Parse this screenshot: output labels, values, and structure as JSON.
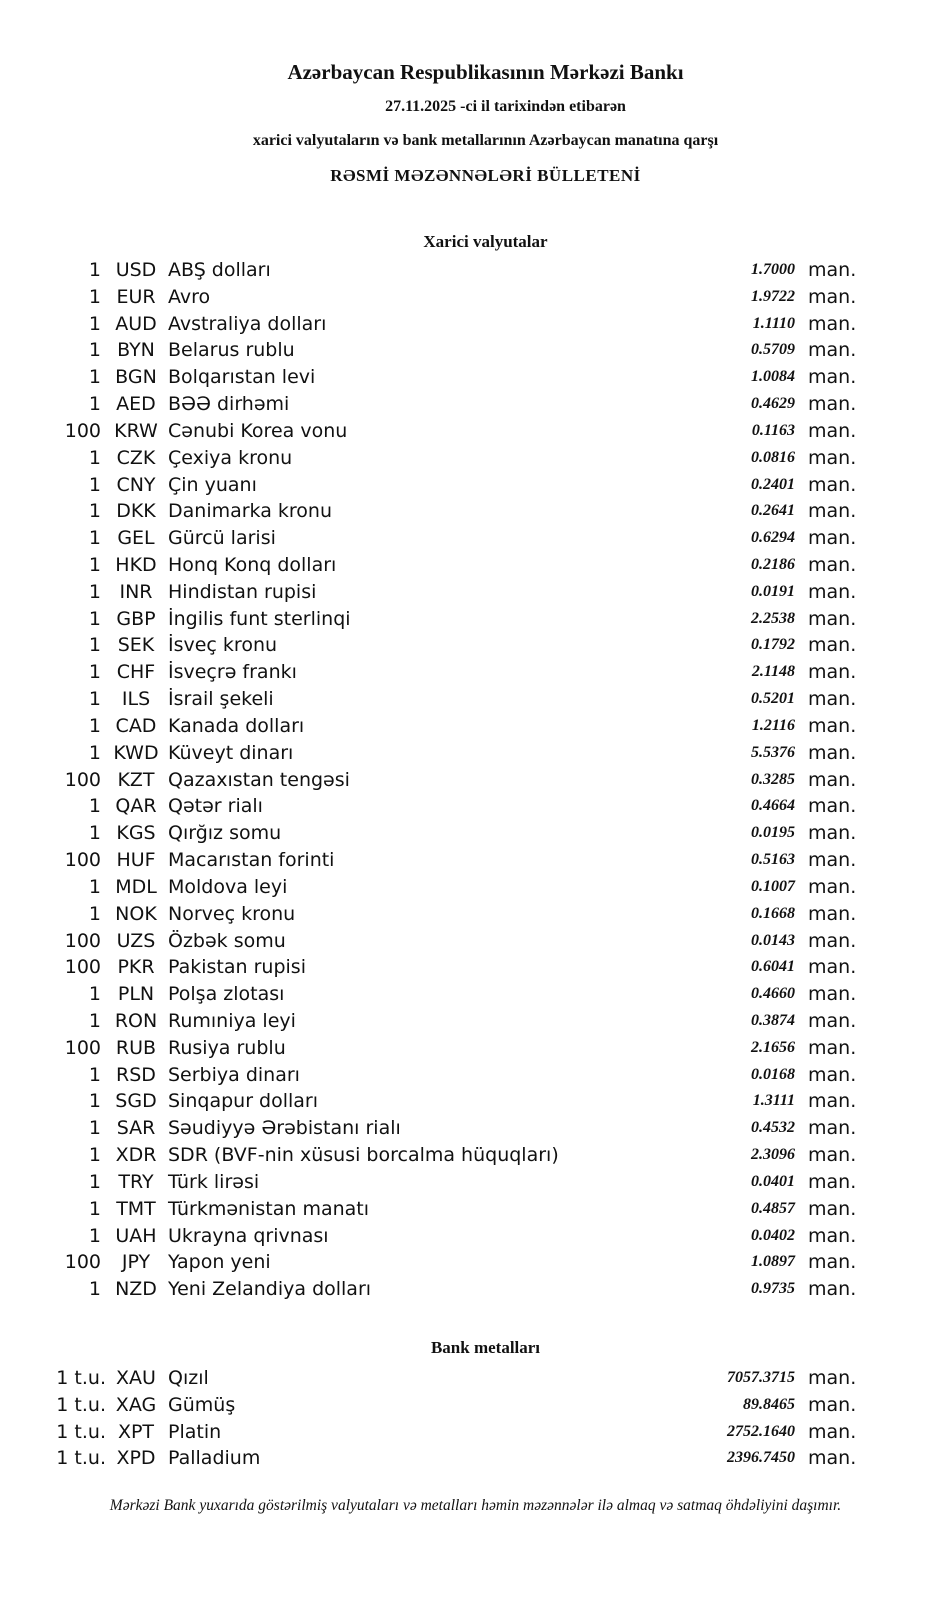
{
  "header": {
    "title": "Azərbaycan Respublikasının Mərkəzi Bankı",
    "date_line": "27.11.2025 -ci il tarixindən etibarən",
    "subtitle": "xarici valyutaların və bank metallarının Azərbaycan manatına qarşı",
    "bulletin": "RƏSMİ MƏZƏNNƏLƏRİ BÜLLETENİ"
  },
  "currencies": {
    "heading": "Xarici valyutalar",
    "rows": [
      {
        "amount": "1",
        "code": "USD",
        "name": "ABŞ dolları",
        "rate": "1.7000",
        "unit": "man."
      },
      {
        "amount": "1",
        "code": "EUR",
        "name": "Avro",
        "rate": "1.9722",
        "unit": "man."
      },
      {
        "amount": "1",
        "code": "AUD",
        "name": "Avstraliya dolları",
        "rate": "1.1110",
        "unit": "man."
      },
      {
        "amount": "1",
        "code": "BYN",
        "name": "Belarus rublu",
        "rate": "0.5709",
        "unit": "man."
      },
      {
        "amount": "1",
        "code": "BGN",
        "name": "Bolqarıstan levi",
        "rate": "1.0084",
        "unit": "man."
      },
      {
        "amount": "1",
        "code": "AED",
        "name": "BƏƏ dirhəmi",
        "rate": "0.4629",
        "unit": "man."
      },
      {
        "amount": "100",
        "code": "KRW",
        "name": "Cənubi Korea vonu",
        "rate": "0.1163",
        "unit": "man."
      },
      {
        "amount": "1",
        "code": "CZK",
        "name": "Çexiya kronu",
        "rate": "0.0816",
        "unit": "man."
      },
      {
        "amount": "1",
        "code": "CNY",
        "name": "Çin yuanı",
        "rate": "0.2401",
        "unit": "man."
      },
      {
        "amount": "1",
        "code": "DKK",
        "name": "Danimarka kronu",
        "rate": "0.2641",
        "unit": "man."
      },
      {
        "amount": "1",
        "code": "GEL",
        "name": "Gürcü larisi",
        "rate": "0.6294",
        "unit": "man."
      },
      {
        "amount": "1",
        "code": "HKD",
        "name": "Honq Konq dolları",
        "rate": "0.2186",
        "unit": "man."
      },
      {
        "amount": "1",
        "code": "INR",
        "name": "Hindistan rupisi",
        "rate": "0.0191",
        "unit": "man."
      },
      {
        "amount": "1",
        "code": "GBP",
        "name": "İngilis funt sterlinqi",
        "rate": "2.2538",
        "unit": "man."
      },
      {
        "amount": "1",
        "code": "SEK",
        "name": "İsveç kronu",
        "rate": "0.1792",
        "unit": "man."
      },
      {
        "amount": "1",
        "code": "CHF",
        "name": "İsveçrə frankı",
        "rate": "2.1148",
        "unit": "man."
      },
      {
        "amount": "1",
        "code": "ILS",
        "name": "İsrail şekeli",
        "rate": "0.5201",
        "unit": "man."
      },
      {
        "amount": "1",
        "code": "CAD",
        "name": "Kanada dolları",
        "rate": "1.2116",
        "unit": "man."
      },
      {
        "amount": "1",
        "code": "KWD",
        "name": "Küveyt dinarı",
        "rate": "5.5376",
        "unit": "man."
      },
      {
        "amount": "100",
        "code": "KZT",
        "name": "Qazaxıstan tengəsi",
        "rate": "0.3285",
        "unit": "man."
      },
      {
        "amount": "1",
        "code": "QAR",
        "name": "Qətər rialı",
        "rate": "0.4664",
        "unit": "man."
      },
      {
        "amount": "1",
        "code": "KGS",
        "name": "Qırğız somu",
        "rate": "0.0195",
        "unit": "man."
      },
      {
        "amount": "100",
        "code": "HUF",
        "name": "Macarıstan forinti",
        "rate": "0.5163",
        "unit": "man."
      },
      {
        "amount": "1",
        "code": "MDL",
        "name": "Moldova leyi",
        "rate": "0.1007",
        "unit": "man."
      },
      {
        "amount": "1",
        "code": "NOK",
        "name": "Norveç kronu",
        "rate": "0.1668",
        "unit": "man."
      },
      {
        "amount": "100",
        "code": "UZS",
        "name": "Özbək somu",
        "rate": "0.0143",
        "unit": "man."
      },
      {
        "amount": "100",
        "code": "PKR",
        "name": "Pakistan rupisi",
        "rate": "0.6041",
        "unit": "man."
      },
      {
        "amount": "1",
        "code": "PLN",
        "name": "Polşa zlotası",
        "rate": "0.4660",
        "unit": "man."
      },
      {
        "amount": "1",
        "code": "RON",
        "name": "Rumıniya leyi",
        "rate": "0.3874",
        "unit": "man."
      },
      {
        "amount": "100",
        "code": "RUB",
        "name": "Rusiya rublu",
        "rate": "2.1656",
        "unit": "man."
      },
      {
        "amount": "1",
        "code": "RSD",
        "name": "Serbiya dinarı",
        "rate": "0.0168",
        "unit": "man."
      },
      {
        "amount": "1",
        "code": "SGD",
        "name": "Sinqapur dolları",
        "rate": "1.3111",
        "unit": "man."
      },
      {
        "amount": "1",
        "code": "SAR",
        "name": "Səudiyyə Ərəbistanı rialı",
        "rate": "0.4532",
        "unit": "man."
      },
      {
        "amount": "1",
        "code": "XDR",
        "name": "SDR (BVF-nin xüsusi borcalma hüquqları)",
        "rate": "2.3096",
        "unit": "man."
      },
      {
        "amount": "1",
        "code": "TRY",
        "name": "Türk lirəsi",
        "rate": "0.0401",
        "unit": "man."
      },
      {
        "amount": "1",
        "code": "TMT",
        "name": "Türkmənistan manatı",
        "rate": "0.4857",
        "unit": "man."
      },
      {
        "amount": "1",
        "code": "UAH",
        "name": "Ukrayna qrivnası",
        "rate": "0.0402",
        "unit": "man."
      },
      {
        "amount": "100",
        "code": "JPY",
        "name": "Yapon yeni",
        "rate": "1.0897",
        "unit": "man."
      },
      {
        "amount": "1",
        "code": "NZD",
        "name": "Yeni Zelandiya dolları",
        "rate": "0.9735",
        "unit": "man."
      }
    ]
  },
  "metals": {
    "heading": "Bank metalları",
    "rows": [
      {
        "amount": "1 t.u.",
        "code": "XAU",
        "name": "Qızıl",
        "rate": "7057.3715",
        "unit": "man."
      },
      {
        "amount": "1 t.u.",
        "code": "XAG",
        "name": "Gümüş",
        "rate": "89.8465",
        "unit": "man."
      },
      {
        "amount": "1 t.u.",
        "code": "XPT",
        "name": "Platin",
        "rate": "2752.1640",
        "unit": "man."
      },
      {
        "amount": "1 t.u.",
        "code": "XPD",
        "name": "Palladium",
        "rate": "2396.7450",
        "unit": "man."
      }
    ]
  },
  "footer": "Mərkəzi Bank yuxarıda göstərilmiş valyutaları və metalları həmin məzənnələr ilə almaq və satmaq öhdəliyini daşımır."
}
